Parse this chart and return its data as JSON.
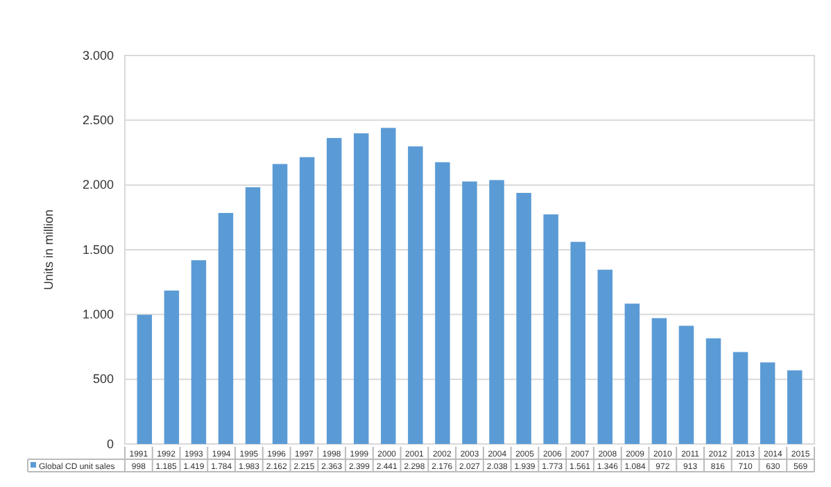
{
  "chart_data": {
    "type": "bar",
    "ylabel": "Units in million",
    "categories": [
      "1991",
      "1992",
      "1993",
      "1994",
      "1995",
      "1996",
      "1997",
      "1998",
      "1999",
      "2000",
      "2001",
      "2002",
      "2003",
      "2004",
      "2005",
      "2006",
      "2007",
      "2008",
      "2009",
      "2010",
      "2011",
      "2012",
      "2013",
      "2014",
      "2015"
    ],
    "series": [
      {
        "name": "Global CD unit sales",
        "color": "#5b9bd5",
        "values": [
          998,
          1185,
          1419,
          1784,
          1983,
          2162,
          2215,
          2363,
          2399,
          2441,
          2298,
          2176,
          2027,
          2038,
          1939,
          1773,
          1561,
          1346,
          1084,
          972,
          913,
          816,
          710,
          630,
          569
        ],
        "value_labels": [
          "998",
          "1.185",
          "1.419",
          "1.784",
          "1.983",
          "2.162",
          "2.215",
          "2.363",
          "2.399",
          "2.441",
          "2.298",
          "2.176",
          "2.027",
          "2.038",
          "1.939",
          "1.773",
          "1.561",
          "1.346",
          "1.084",
          "972",
          "913",
          "816",
          "710",
          "630",
          "569"
        ]
      }
    ],
    "ylim": [
      0,
      3000
    ],
    "yticks": [
      {
        "value": 0,
        "label": "0"
      },
      {
        "value": 500,
        "label": "500"
      },
      {
        "value": 1000,
        "label": "1.000"
      },
      {
        "value": 1500,
        "label": "1.500"
      },
      {
        "value": 2000,
        "label": "2.000"
      },
      {
        "value": 2500,
        "label": "2.500"
      },
      {
        "value": 3000,
        "label": "3.000"
      }
    ],
    "grid": "y",
    "legend": "bottom"
  }
}
